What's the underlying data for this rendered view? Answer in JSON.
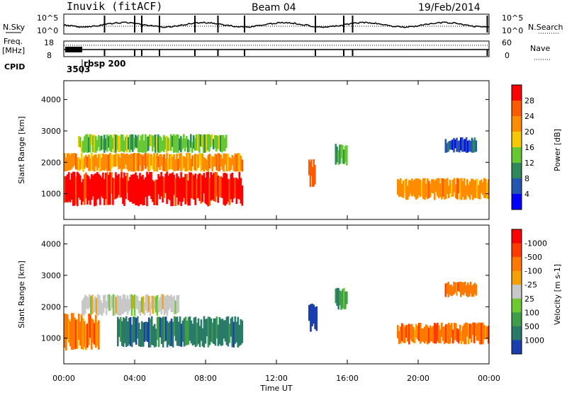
{
  "header": {
    "station": "Inuvik (fitACF)",
    "beam": "Beam 04",
    "date": "19/Feb/2014"
  },
  "summary": {
    "nsky_label": "N.Sky",
    "nsky_ticks": [
      "10^5",
      "10^0"
    ],
    "nsearch_label": "N.Search",
    "nsearch_ticks": [
      "10^5",
      "10^0"
    ],
    "freq_label_1": "Freq.",
    "freq_label_2": "[MHz]",
    "freq_ticks": [
      "18",
      "8"
    ],
    "nave_label": "Nave",
    "nave_ticks": [
      "60",
      "0"
    ],
    "cpid_label": "CPID",
    "cpid_value": "3503",
    "cpid_name": "rbsp 200"
  },
  "chart_data": [
    {
      "type": "heatmap",
      "name": "power",
      "ylabel": "Slant Range [km]",
      "ylim": [
        180,
        4600
      ],
      "yticks": [
        "1000",
        "2000",
        "3000",
        "4000"
      ],
      "xlim": [
        0,
        24
      ],
      "colorbar_label": "Power [dB]",
      "colorbar_ticks": [
        "4",
        "8",
        "12",
        "16",
        "20",
        "24",
        "28"
      ],
      "colors": [
        "#0000ff",
        "#2356b0",
        "#2e8b57",
        "#66c832",
        "#f5c800",
        "#ff8c00",
        "#ff5a00",
        "#ff0000"
      ],
      "patches": [
        {
          "x": [
            0.0,
            10.1
          ],
          "y": [
            600,
            1700
          ],
          "level": 7
        },
        {
          "x": [
            0.0,
            10.1
          ],
          "y": [
            1700,
            2300
          ],
          "level": 5
        },
        {
          "x": [
            0.8,
            9.2
          ],
          "y": [
            2300,
            2900
          ],
          "level": 3
        },
        {
          "x": [
            13.8,
            14.2
          ],
          "y": [
            1200,
            2100
          ],
          "level": 6
        },
        {
          "x": [
            15.3,
            16.0
          ],
          "y": [
            1900,
            2600
          ],
          "level": 3
        },
        {
          "x": [
            18.8,
            24.0
          ],
          "y": [
            800,
            1500
          ],
          "level": 5
        },
        {
          "x": [
            21.5,
            23.3
          ],
          "y": [
            2300,
            2800
          ],
          "level": 1
        }
      ]
    },
    {
      "type": "heatmap",
      "name": "velocity",
      "ylabel": "Slant Range [km]",
      "ylim": [
        180,
        4600
      ],
      "yticks": [
        "1000",
        "2000",
        "3000",
        "4000"
      ],
      "xlim": [
        0,
        24
      ],
      "xticks": [
        "00:00",
        "04:00",
        "08:00",
        "12:00",
        "16:00",
        "20:00",
        "00:00"
      ],
      "xlabel": "Time UT",
      "colorbar_label": "Velocity [m s-1]",
      "colorbar_ticks": [
        "1000",
        "500",
        "100",
        "25",
        "-25",
        "-100",
        "-500",
        "-1000"
      ],
      "colors": [
        "#1a3fb0",
        "#2a7a6a",
        "#3f9e4a",
        "#6ec832",
        "#c8c8c8",
        "#f5a000",
        "#ff7800",
        "#ff3c00",
        "#ff0000"
      ],
      "patches": [
        {
          "x": [
            0.0,
            2.0
          ],
          "y": [
            600,
            1800
          ],
          "level": 6
        },
        {
          "x": [
            1.0,
            6.5
          ],
          "y": [
            1700,
            2400
          ],
          "level": 4
        },
        {
          "x": [
            3.0,
            10.1
          ],
          "y": [
            700,
            1700
          ],
          "level": 1
        },
        {
          "x": [
            13.8,
            14.3
          ],
          "y": [
            1200,
            2100
          ],
          "level": 0
        },
        {
          "x": [
            15.3,
            16.0
          ],
          "y": [
            1900,
            2600
          ],
          "level": 2
        },
        {
          "x": [
            18.8,
            24.0
          ],
          "y": [
            800,
            1500
          ],
          "level": 6
        },
        {
          "x": [
            21.5,
            23.3
          ],
          "y": [
            2300,
            2800
          ],
          "level": 6
        }
      ]
    }
  ]
}
